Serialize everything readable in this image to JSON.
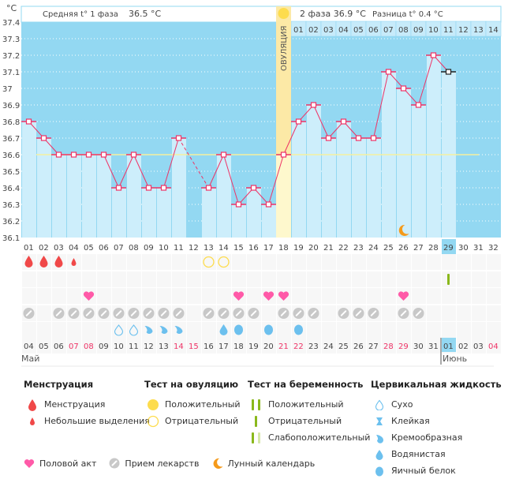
{
  "header": {
    "unit": "°C",
    "phase1_label": "Средняя t° 1 фаза",
    "phase1_value": "36.5 °C",
    "phase2_label": "2 фаза",
    "phase2_value": "36.9 °C",
    "diff_label": "Разница t°",
    "diff_value": "0.4 °C",
    "ovulation_label": "ОВУЛЯЦИЯ"
  },
  "colors": {
    "sky": "#93d8f2",
    "bar": "#cdeefb",
    "line": "#ee3366",
    "coverline": "#f5f0a0",
    "ovulation": "#fce9a6",
    "ovulation_low": "#fef8cd",
    "today": "#93d8f2",
    "weekend": "#ee3366",
    "blood": "#f04848",
    "heart": "#ff5aa8",
    "pill": "#c8c8c8",
    "fluid": "#6cc0ee",
    "ov_test": "#fddc4d",
    "preg_test": "#8ab81c",
    "moon": "#f59a1a"
  },
  "chart_data": {
    "type": "line",
    "title": "",
    "ylabel": "°C",
    "ylim": [
      36.1,
      37.4
    ],
    "yticks": [
      "37.4",
      "37.3",
      "37.2",
      "37.1",
      "37",
      "36.9",
      "36.8",
      "36.7",
      "36.6",
      "36.5",
      "36.4",
      "36.3",
      "36.2",
      "36.1"
    ],
    "cycle_days": [
      "01",
      "02",
      "03",
      "04",
      "05",
      "06",
      "07",
      "08",
      "09",
      "10",
      "11",
      "12",
      "13",
      "14",
      "15",
      "16",
      "17",
      "18",
      "19",
      "20",
      "21",
      "22",
      "23",
      "24",
      "25",
      "26",
      "27",
      "28",
      "29",
      "30",
      "31",
      "32"
    ],
    "phase2_days": [
      "01",
      "02",
      "03",
      "04",
      "05",
      "06",
      "07",
      "08",
      "09",
      "10",
      "11",
      "12",
      "13",
      "14"
    ],
    "dates": [
      "04",
      "05",
      "06",
      "07",
      "08",
      "09",
      "10",
      "11",
      "12",
      "13",
      "14",
      "15",
      "16",
      "17",
      "18",
      "19",
      "20",
      "21",
      "22",
      "23",
      "24",
      "25",
      "26",
      "27",
      "28",
      "29",
      "30",
      "31",
      "01",
      "02",
      "03",
      "04"
    ],
    "weekend_idx": [
      3,
      4,
      10,
      11,
      17,
      18,
      24,
      25,
      31
    ],
    "months": [
      {
        "label": "Май",
        "start_idx": 0
      },
      {
        "label": "Июнь",
        "start_idx": 28
      }
    ],
    "series": [
      {
        "name": "Базальная температура",
        "values": [
          36.8,
          36.7,
          36.6,
          36.6,
          36.6,
          36.6,
          36.4,
          36.6,
          36.4,
          36.4,
          36.7,
          null,
          36.4,
          36.6,
          36.3,
          36.4,
          36.3,
          36.6,
          36.8,
          36.9,
          36.7,
          36.8,
          36.7,
          36.7,
          37.1,
          37.0,
          36.9,
          37.2,
          37.1,
          null,
          null,
          null
        ]
      }
    ],
    "dashed_segments": [
      [
        11,
        13
      ]
    ],
    "coverline": 36.6,
    "coverline_end_day": 31,
    "ovulation_day": 18,
    "today_day": 29,
    "markers": {
      "menstruation": [
        1,
        2,
        3
      ],
      "spotting": [
        4
      ],
      "ov_test_negative": [
        13,
        14
      ],
      "preg_test_negative": [
        29
      ],
      "intercourse": [
        5,
        15,
        17,
        18,
        26
      ],
      "medication": [
        1,
        3,
        4,
        5,
        6,
        7,
        8,
        9,
        10,
        11,
        13,
        14,
        15,
        16,
        18,
        19,
        20,
        22,
        23,
        24,
        26,
        27
      ],
      "fluid_dry": [
        7,
        8
      ],
      "fluid_creamy": [
        9,
        10,
        11
      ],
      "fluid_watery": [
        14
      ],
      "fluid_eggwhite": [
        15,
        17,
        19
      ],
      "moon": [
        26
      ]
    }
  },
  "legend": {
    "menstruation": {
      "title": "Менструация",
      "items": [
        "Менструация",
        "Небольшие выделения"
      ]
    },
    "ov_test": {
      "title": "Тест на овуляцию",
      "items": [
        "Положительный",
        "Отрицательный"
      ]
    },
    "preg_test": {
      "title": "Тест на беременность",
      "items": [
        "Положительный",
        "Отрицательный",
        "Слабоположительный"
      ]
    },
    "fluid": {
      "title": "Цервикальная жидкость",
      "items": [
        "Сухо",
        "Клейкая",
        "Кремообразная",
        "Водянистая",
        "Яичный белок"
      ]
    },
    "bottom": [
      "Половой акт",
      "Прием лекарств",
      "Лунный календарь"
    ]
  }
}
